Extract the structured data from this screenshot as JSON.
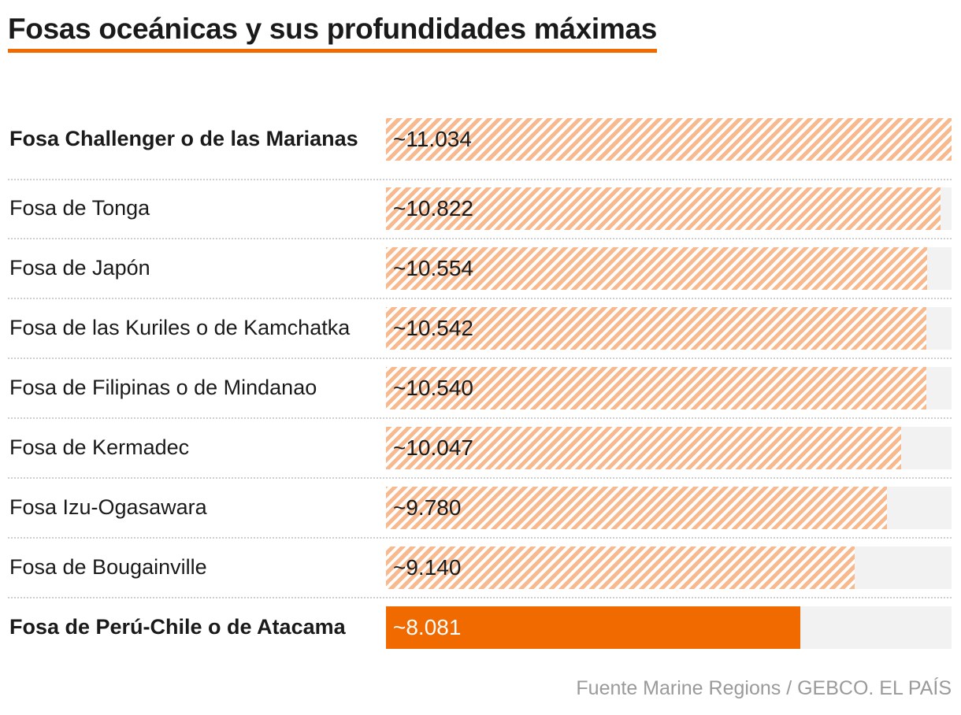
{
  "chart_data": {
    "type": "bar",
    "orientation": "horizontal",
    "title": "Fosas oceánicas y sus profundidades máximas",
    "xlabel": "",
    "ylabel": "",
    "xlim": [
      0,
      11034
    ],
    "grid": false,
    "categories": [
      "Fosa Challenger o de las Marianas",
      "Fosa de Tonga",
      "Fosa de Japón",
      "Fosa de las Kuriles o de Kamchatka",
      "Fosa de Filipinas o de Mindanao",
      "Fosa de Kermadec",
      "Fosa Izu-Ogasawara",
      "Fosa de Bougainville",
      "Fosa de Perú-Chile o de Atacama"
    ],
    "values": [
      11034,
      10822,
      10554,
      10542,
      10540,
      10047,
      9780,
      9140,
      8081
    ],
    "value_labels": [
      "~11.034",
      "~10.822",
      "~10.554",
      "~10.542",
      "~10.540",
      "~10.047",
      "~9.780",
      "~9.140",
      "~8.081"
    ],
    "highlighted_bold": [
      0,
      8
    ],
    "highlighted_solid": [
      8
    ]
  },
  "source": "Fuente Marine Regions / GEBCO. EL PAÍS",
  "colors": {
    "accent": "#f06a00",
    "hatch": "#f7b98d",
    "track": "#f2f2f2",
    "text": "#1a1a1a",
    "source": "#9a9a9a"
  }
}
